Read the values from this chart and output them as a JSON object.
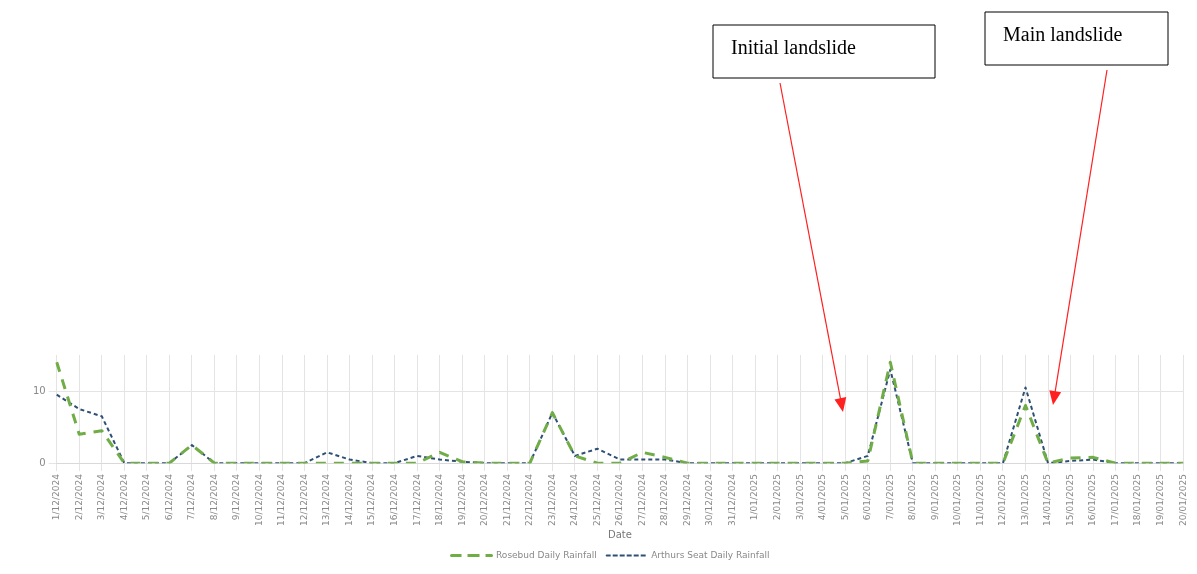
{
  "chart_data": {
    "type": "line",
    "xlabel": "Date",
    "categories": [
      "1/12/2024",
      "2/12/2024",
      "3/12/2024",
      "4/12/2024",
      "5/12/2024",
      "6/12/2024",
      "7/12/2024",
      "8/12/2024",
      "9/12/2024",
      "10/12/2024",
      "11/12/2024",
      "12/12/2024",
      "13/12/2024",
      "14/12/2024",
      "15/12/2024",
      "16/12/2024",
      "17/12/2024",
      "18/12/2024",
      "19/12/2024",
      "20/12/2024",
      "21/12/2024",
      "22/12/2024",
      "23/12/2024",
      "24/12/2024",
      "25/12/2024",
      "26/12/2024",
      "27/12/2024",
      "28/12/2024",
      "29/12/2024",
      "30/12/2024",
      "31/12/2024",
      "1/01/2025",
      "2/01/2025",
      "3/01/2025",
      "4/01/2025",
      "5/01/2025",
      "6/01/2025",
      "7/01/2025",
      "8/01/2025",
      "9/01/2025",
      "10/01/2025",
      "11/01/2025",
      "12/01/2025",
      "13/01/2025",
      "14/01/2025",
      "15/01/2025",
      "16/01/2025",
      "17/01/2025",
      "18/01/2025",
      "19/01/2025",
      "20/01/2025"
    ],
    "series": [
      {
        "name": "Rosebud Daily Rainfall",
        "color": "#70ad47",
        "line_style": "dashed",
        "values": [
          14,
          4,
          4.5,
          0,
          0,
          0,
          2.5,
          0,
          0,
          0,
          0,
          0,
          0,
          0,
          0,
          0,
          0,
          1.5,
          0.2,
          0,
          0,
          0,
          7,
          1,
          0,
          0,
          1.5,
          0.8,
          0,
          0,
          0,
          0,
          0,
          0,
          0,
          0,
          0.3,
          14,
          0,
          0,
          0,
          0,
          0,
          8,
          0,
          0.7,
          0.8,
          0,
          0,
          0,
          0
        ]
      },
      {
        "name": "Arthurs Seat Daily Rainfall",
        "color": "#2e5075",
        "line_style": "dotted",
        "values": [
          9.5,
          7.5,
          6.5,
          0,
          0,
          0,
          2.5,
          0,
          0,
          0,
          0,
          0,
          1.5,
          0.5,
          0,
          0,
          1,
          0.5,
          0.2,
          0,
          0,
          0,
          7,
          1,
          2,
          0.5,
          0.5,
          0.5,
          0,
          0,
          0,
          0,
          0,
          0,
          0,
          0,
          1,
          13,
          0,
          0,
          0,
          0,
          0,
          10.5,
          0,
          0.3,
          0.5,
          0,
          0,
          0,
          0
        ]
      }
    ],
    "ylim": [
      0,
      15
    ],
    "yticks": [
      0,
      10
    ],
    "grid": true,
    "legend": "bottom",
    "marker": "none",
    "annotations": [
      "Initial landslide",
      "Main landslide"
    ]
  }
}
